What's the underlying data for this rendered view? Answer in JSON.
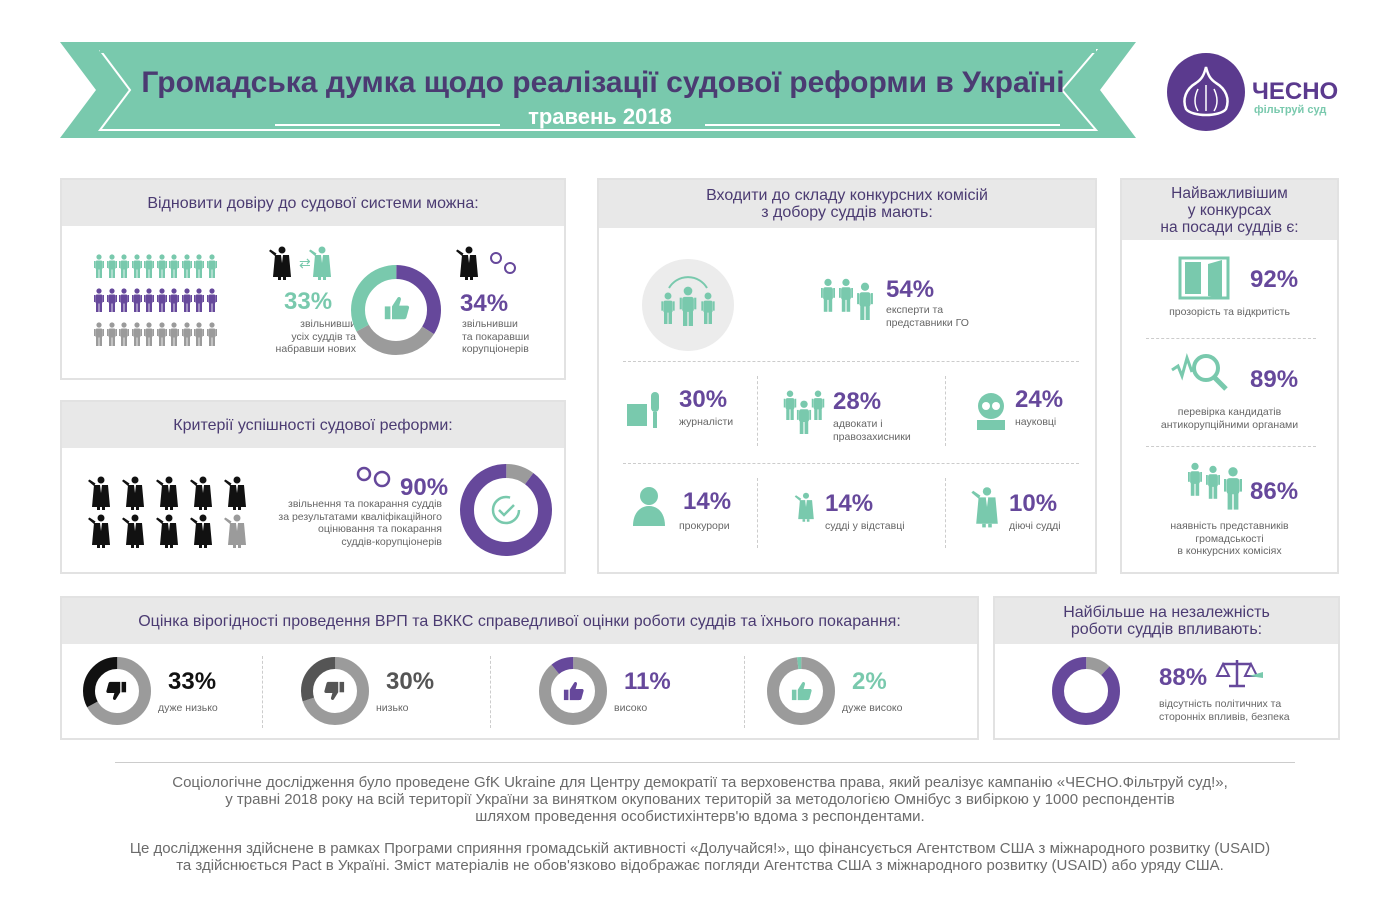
{
  "header": {
    "title": "Громадська думка щодо реалізації судової реформи в Україні",
    "subtitle": "травень 2018"
  },
  "logo": {
    "name": "ЧЕСНО",
    "tagline": "фільтруй суд"
  },
  "colors": {
    "teal": "#79c9ad",
    "purple": "#66489b",
    "gray": "#9b9b9b",
    "dark": "#222222",
    "darkgray": "#555555"
  },
  "trust": {
    "title": "Відновити довіру до судової системи можна:",
    "left": {
      "value": "33%",
      "label": "звільнивши\nусіх суддів та\nнабравши нових"
    },
    "right": {
      "value": "34%",
      "label": "звільнивши\nта покаравши\nкорупціонерів"
    },
    "donut": [
      {
        "value": 34,
        "color": "#66489b"
      },
      {
        "value": 33,
        "color": "#9b9b9b"
      },
      {
        "value": 33,
        "color": "#79c9ad"
      }
    ]
  },
  "criteria": {
    "title": "Критерії успішності судової реформи:",
    "value": "90%",
    "label": "звільнення та покарання суддів\nза результатами кваліфікаційного\nоцінювання та покарання\nсуддів-корупціонерів",
    "donut": [
      {
        "value": 10,
        "color": "#9b9b9b"
      },
      {
        "value": 90,
        "color": "#66489b"
      }
    ]
  },
  "commissions": {
    "title": "Входити до складу конкурсних комісій\nз добору суддів мають:",
    "top": {
      "value": "54%",
      "label": "експерти та\nпредставники ГО"
    },
    "items": [
      {
        "value": "30%",
        "label": "журналісти"
      },
      {
        "value": "28%",
        "label": "адвокати і\nправозахисники"
      },
      {
        "value": "24%",
        "label": "науковці"
      },
      {
        "value": "14%",
        "label": "прокурори"
      },
      {
        "value": "14%",
        "label": "судді у відставці"
      },
      {
        "value": "10%",
        "label": "діючі судді"
      }
    ]
  },
  "important": {
    "title": "Найважливішим\nу конкурсах\nна посади суддів є:",
    "items": [
      {
        "value": "92%",
        "label": "прозорість та відкритість"
      },
      {
        "value": "89%",
        "label": "перевірка кандидатів\nантикорупційними органами"
      },
      {
        "value": "86%",
        "label": "наявність представників\nгромадськості\nв конкурсних комісіях"
      }
    ]
  },
  "credibility": {
    "title": "Оцінка вірогідності проведення ВРП та ВККС справедливої оцінки роботи суддів та їхнього покарання:",
    "items": [
      {
        "value": "33%",
        "label": "дуже низько",
        "color": "#111111",
        "donut": [
          {
            "value": 67,
            "color": "#9b9b9b"
          },
          {
            "value": 33,
            "color": "#111111"
          }
        ]
      },
      {
        "value": "30%",
        "label": "низько",
        "color": "#555555",
        "donut": [
          {
            "value": 70,
            "color": "#9b9b9b"
          },
          {
            "value": 30,
            "color": "#555555"
          }
        ]
      },
      {
        "value": "11%",
        "label": "високо",
        "color": "#66489b",
        "donut": [
          {
            "value": 89,
            "color": "#9b9b9b"
          },
          {
            "value": 11,
            "color": "#66489b"
          }
        ]
      },
      {
        "value": "2%",
        "label": "дуже високо",
        "color": "#79c9ad",
        "donut": [
          {
            "value": 98,
            "color": "#9b9b9b"
          },
          {
            "value": 2,
            "color": "#79c9ad"
          }
        ]
      }
    ]
  },
  "independence": {
    "title": "Найбільше на незалежність\nроботи суддів впливають:",
    "value": "88%",
    "label": "відсутність політичних та\nсторонніх впливів, безпека",
    "donut": [
      {
        "value": 12,
        "color": "#9b9b9b"
      },
      {
        "value": 88,
        "color": "#66489b"
      }
    ]
  },
  "footer": {
    "p1": "Соціологічне дослідження було проведене GfK Ukraine для Центру демократії та верховенства права, який реалізує кампанію «ЧЕСНО.Фільтруй суд!»,\nу травні 2018 року на всій території України за винятком окупованих територій за методологією Омнібус з вибіркою у 1000 респондентів\nшляхом проведення особистихінтерв'ю вдома з респондентами.",
    "p2": "Це дослідження здійснене в рамках Програми сприяння громадській активності «Долучайся!», що фінансується Агентством США з міжнародного розвитку (USAID)\nта здійснюється Pact в Україні. Зміст матеріалів не обов'язково відображає погляди Агентства США з міжнародного розвитку (USAID) або уряду США."
  }
}
